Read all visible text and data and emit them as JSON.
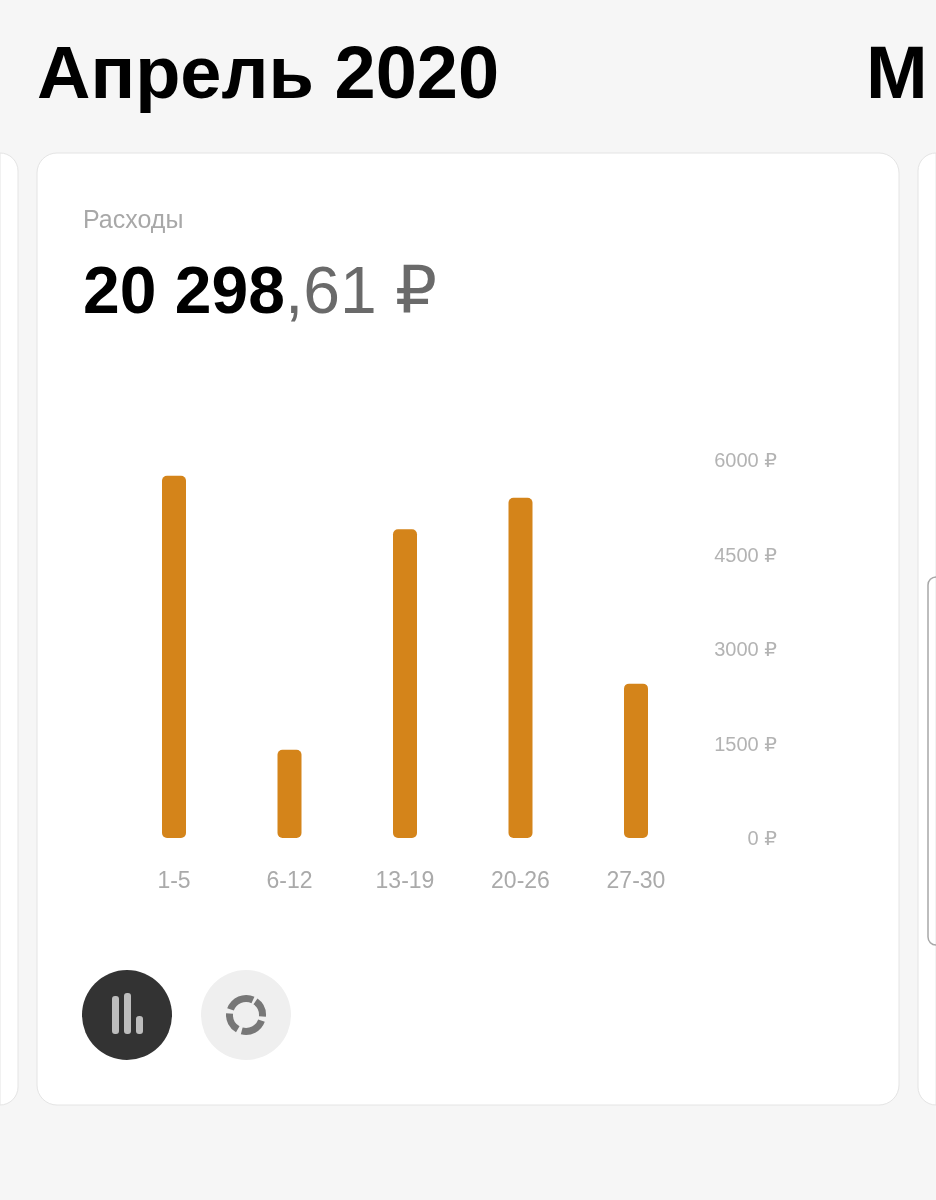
{
  "chart_data": {
    "type": "bar",
    "title": "Апрель 2020",
    "subtitle": "Расходы",
    "annotations": [
      "20 298,61 ₽",
      "М"
    ],
    "categories": [
      "1-5",
      "6-12",
      "13-19",
      "20-26",
      "27-30"
    ],
    "values": [
      5750,
      1400,
      4900,
      5400,
      2450
    ],
    "color": "#d4841a",
    "ylim": [
      0,
      6000
    ],
    "yticks": [
      {
        "value": 0,
        "label": "0 ₽"
      },
      {
        "value": 1500,
        "label": "1500 ₽"
      },
      {
        "value": 3000,
        "label": "3000 ₽"
      },
      {
        "value": 4500,
        "label": "4500 ₽"
      },
      {
        "value": 6000,
        "label": "6000 ₽"
      }
    ]
  }
}
